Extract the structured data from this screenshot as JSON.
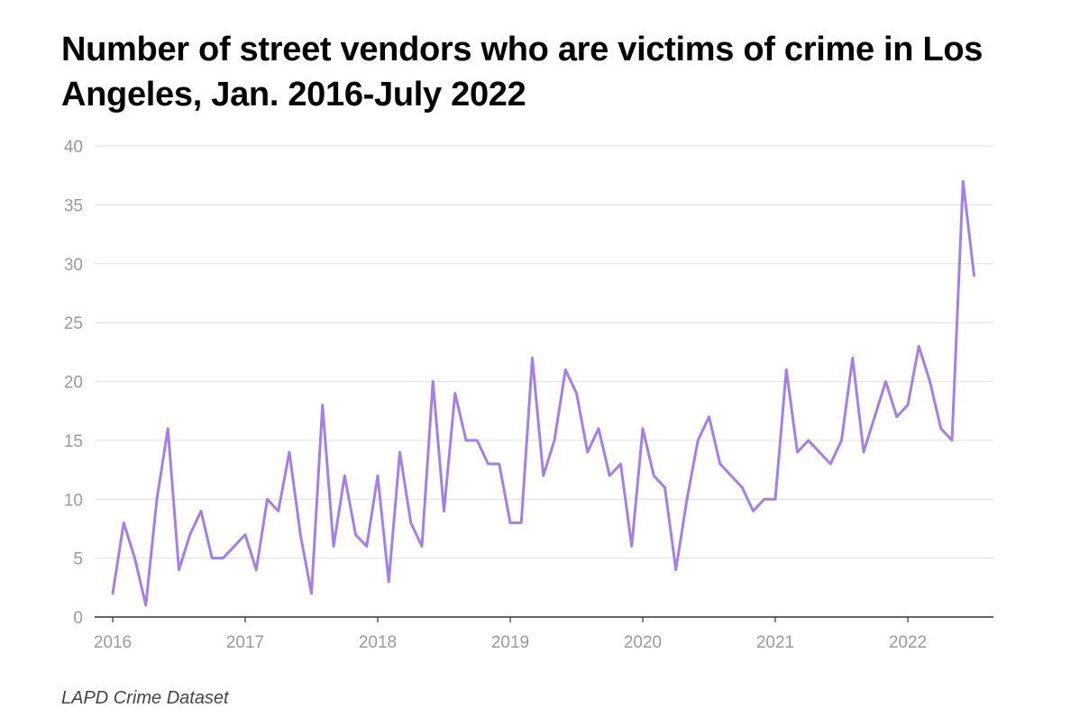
{
  "title": "Number of street vendors who are victims of crime in Los Angeles, Jan. 2016-July 2022",
  "source": "LAPD Crime Dataset",
  "colors": {
    "line": "#a57fe6",
    "grid": "#e4e4e4",
    "axis": "#333333",
    "tick_text": "#9a9a9a"
  },
  "chart_data": {
    "type": "line",
    "title": "Number of street vendors who are victims of crime in Los Angeles, Jan. 2016-July 2022",
    "xlabel": "",
    "ylabel": "",
    "x_start": "2016-01",
    "x_end": "2022-07",
    "x_ticks": [
      "2016",
      "2017",
      "2018",
      "2019",
      "2020",
      "2021",
      "2022"
    ],
    "y_ticks": [
      0,
      5,
      10,
      15,
      20,
      25,
      30,
      35,
      40
    ],
    "ylim": [
      0,
      40
    ],
    "grid": true,
    "series": [
      {
        "values": [
          2,
          8,
          5,
          1,
          10,
          16,
          4,
          7,
          9,
          5,
          5,
          6,
          7,
          4,
          10,
          9,
          14,
          7,
          2,
          18,
          6,
          12,
          7,
          6,
          12,
          3,
          14,
          8,
          6,
          20,
          9,
          19,
          15,
          15,
          13,
          13,
          8,
          8,
          22,
          12,
          15,
          21,
          19,
          14,
          16,
          12,
          13,
          6,
          16,
          12,
          11,
          4,
          10,
          15,
          17,
          13,
          12,
          11,
          9,
          10,
          10,
          21,
          14,
          15,
          14,
          13,
          15,
          22,
          14,
          17,
          20,
          17,
          18,
          23,
          20,
          16,
          15,
          37,
          29
        ]
      }
    ]
  }
}
